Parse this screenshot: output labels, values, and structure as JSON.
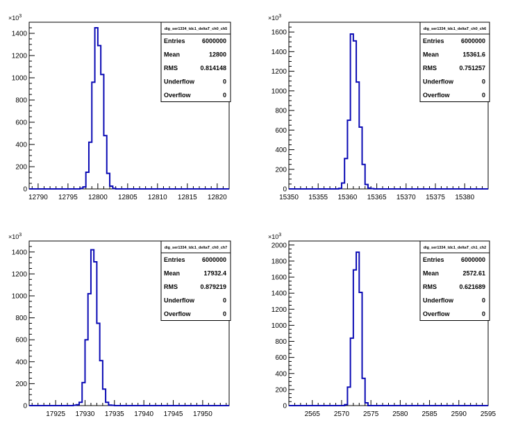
{
  "chart_data": [
    {
      "type": "bar",
      "stats_title": "dig_ser1334_tdc1_deltaT_ch0_ch5",
      "stats": [
        {
          "key": "Entries",
          "value": "6000000"
        },
        {
          "key": "Mean",
          "value": "12800"
        },
        {
          "key": "RMS",
          "value": "0.814148"
        },
        {
          "key": "Underflow",
          "value": "0"
        },
        {
          "key": "Overflow",
          "value": "0"
        }
      ],
      "y_multiplier": "10^3",
      "xlim": [
        12788.5,
        12822
      ],
      "ylim": [
        0,
        1500
      ],
      "xticks": [
        12790,
        12795,
        12800,
        12805,
        12810,
        12815,
        12820
      ],
      "yticks": [
        0,
        200,
        400,
        600,
        800,
        1000,
        1200,
        1400
      ],
      "bin_edges": [
        12797,
        12797.5,
        12798,
        12798.5,
        12799,
        12799.5,
        12800,
        12800.5,
        12801,
        12801.5,
        12802,
        12802.5,
        12803
      ],
      "values": [
        5,
        18,
        150,
        420,
        960,
        1450,
        1290,
        1030,
        480,
        140,
        25,
        5
      ]
    },
    {
      "type": "bar",
      "stats_title": "dig_ser1334_tdc1_deltaT_ch0_ch6",
      "stats": [
        {
          "key": "Entries",
          "value": "6000000"
        },
        {
          "key": "Mean",
          "value": "15361.6"
        },
        {
          "key": "RMS",
          "value": "0.751257"
        },
        {
          "key": "Underflow",
          "value": "0"
        },
        {
          "key": "Overflow",
          "value": "0"
        }
      ],
      "y_multiplier": "10^3",
      "xlim": [
        15350,
        15384
      ],
      "ylim": [
        0,
        1700
      ],
      "xticks": [
        15350,
        15355,
        15360,
        15365,
        15370,
        15375,
        15380
      ],
      "yticks": [
        0,
        200,
        400,
        600,
        800,
        1000,
        1200,
        1400,
        1600
      ],
      "bin_edges": [
        15358.5,
        15359,
        15359.5,
        15360,
        15360.5,
        15361,
        15361.5,
        15362,
        15362.5,
        15363,
        15363.5,
        15364,
        15364.5
      ],
      "values": [
        5,
        60,
        310,
        700,
        1580,
        1510,
        1090,
        630,
        250,
        45,
        8,
        3
      ]
    },
    {
      "type": "bar",
      "stats_title": "dig_ser1334_tdc1_deltaT_ch0_ch7",
      "stats": [
        {
          "key": "Entries",
          "value": "6000000"
        },
        {
          "key": "Mean",
          "value": "17932.4"
        },
        {
          "key": "RMS",
          "value": "0.879219"
        },
        {
          "key": "Underflow",
          "value": "0"
        },
        {
          "key": "Overflow",
          "value": "0"
        }
      ],
      "y_multiplier": "10^3",
      "xlim": [
        17920.5,
        17954.5
      ],
      "ylim": [
        0,
        1500
      ],
      "xticks": [
        17925,
        17930,
        17935,
        17940,
        17945,
        17950
      ],
      "yticks": [
        0,
        200,
        400,
        600,
        800,
        1000,
        1200,
        1400
      ],
      "bin_edges": [
        17928,
        17928.5,
        17929,
        17929.5,
        17930,
        17930.5,
        17931,
        17931.5,
        17932,
        17932.5,
        17933,
        17933.5,
        17934,
        17934.5,
        17935
      ],
      "values": [
        3,
        8,
        30,
        210,
        600,
        1020,
        1420,
        1310,
        750,
        410,
        150,
        30,
        5,
        2
      ]
    },
    {
      "type": "bar",
      "stats_title": "dig_ser1334_tdc1_deltaT_ch1_ch2",
      "stats": [
        {
          "key": "Entries",
          "value": "6000000"
        },
        {
          "key": "Mean",
          "value": "2572.61"
        },
        {
          "key": "RMS",
          "value": "0.621689"
        },
        {
          "key": "Underflow",
          "value": "0"
        },
        {
          "key": "Overflow",
          "value": "0"
        }
      ],
      "y_multiplier": "10^3",
      "xlim": [
        2561,
        2595
      ],
      "ylim": [
        0,
        2050
      ],
      "xticks": [
        2565,
        2570,
        2575,
        2580,
        2585,
        2590,
        2595
      ],
      "yticks": [
        0,
        200,
        400,
        600,
        800,
        1000,
        1200,
        1400,
        1600,
        1800,
        2000
      ],
      "bin_edges": [
        2570.5,
        2571,
        2571.5,
        2572,
        2572.5,
        2573,
        2573.5,
        2574,
        2574.5
      ],
      "values": [
        12,
        230,
        840,
        1690,
        1910,
        1410,
        340,
        35
      ]
    }
  ]
}
